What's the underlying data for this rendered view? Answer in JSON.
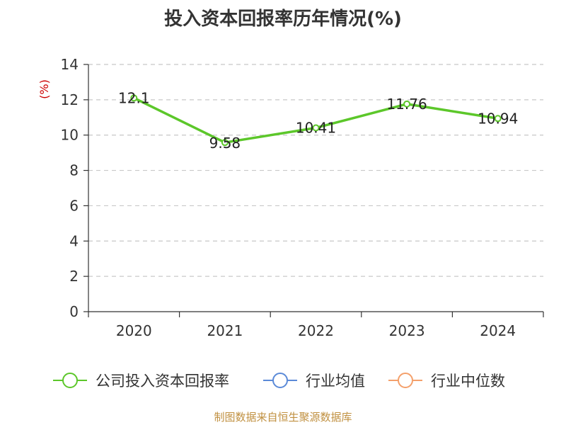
{
  "chart_data": {
    "type": "line",
    "title": "投入资本回报率历年情况(%)",
    "ylabel": "(%)",
    "xlabel": "",
    "categories": [
      "2020",
      "2021",
      "2022",
      "2023",
      "2024"
    ],
    "series": [
      {
        "name": "公司投入资本回报率",
        "values": [
          12.1,
          9.58,
          10.41,
          11.76,
          10.94
        ],
        "color": "#5cc72a"
      }
    ],
    "legend": [
      {
        "name": "公司投入资本回报率",
        "color": "#5cc72a"
      },
      {
        "name": "行业均值",
        "color": "#5b8ad8"
      },
      {
        "name": "行业中位数",
        "color": "#f4a06b"
      }
    ],
    "ylim": [
      0,
      14
    ],
    "yticks": [
      0,
      2,
      4,
      6,
      8,
      10,
      12,
      14
    ],
    "grid": true,
    "legend_position": "bottom"
  },
  "source": "制图数据来自恒生聚源数据库"
}
